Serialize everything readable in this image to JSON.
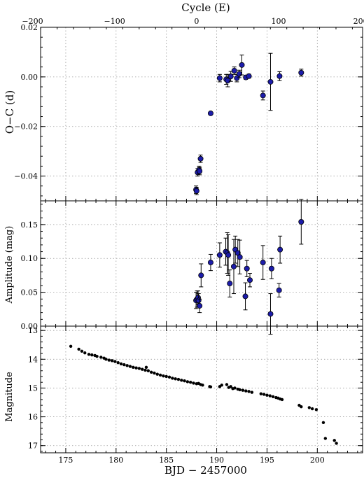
{
  "chart_data": [
    {
      "type": "scatter",
      "panel": "top",
      "ylabel": "O−C (d)",
      "xlabel_top": "Cycle (E)",
      "xlim": [
        172.5,
        204.5
      ],
      "ylim": [
        -0.05,
        0.02
      ],
      "yticks": [
        -0.04,
        -0.02,
        0.0,
        0.02
      ],
      "yticklabels": [
        "−0.04",
        "−0.02",
        "0.00",
        "0.02"
      ],
      "top_axis": {
        "ticks": [
          -200,
          -100,
          0,
          100,
          200
        ],
        "ticklabels": [
          "−200",
          "−100",
          "0",
          "100",
          "200"
        ],
        "zero_bjd": 188.0,
        "bjd_per_cycle": 0.0815
      },
      "grid": true,
      "series": [
        {
          "marker": "blue-circle",
          "x": [
            187.95,
            188.0,
            188.1,
            188.25,
            188.3,
            188.4,
            189.4,
            190.3,
            190.95,
            191.1,
            191.4,
            191.75,
            192.0,
            192.25,
            192.5,
            192.9,
            193.2,
            194.6,
            195.35,
            196.25,
            198.4
          ],
          "y": [
            -0.0455,
            -0.046,
            -0.0385,
            -0.0375,
            -0.038,
            -0.033,
            -0.0147,
            -0.0005,
            -0.001,
            -0.0015,
            0.0002,
            0.0025,
            -0.0005,
            0.0012,
            0.0048,
            -0.0002,
            0.0003,
            -0.0075,
            -0.002,
            0.0003,
            0.0017
          ],
          "yerr": [
            0.0015,
            0.0015,
            0.0015,
            0.0015,
            0.0015,
            0.0015,
            0.0004,
            0.0015,
            0.002,
            0.0025,
            0.002,
            0.0015,
            0.0015,
            0.0015,
            0.004,
            0.0008,
            0.0008,
            0.0018,
            0.0115,
            0.0018,
            0.0014
          ]
        }
      ]
    },
    {
      "type": "scatter",
      "panel": "middle",
      "ylabel": "Amplitude (mag)",
      "xlim": [
        172.5,
        204.5
      ],
      "ylim": [
        0,
        0.185
      ],
      "yticks": [
        0.0,
        0.05,
        0.1,
        0.15
      ],
      "yticklabels": [
        "0.00",
        "0.05",
        "0.10",
        "0.15"
      ],
      "grid": true,
      "series": [
        {
          "marker": "blue-circle",
          "x": [
            187.95,
            188.05,
            188.15,
            188.2,
            188.3,
            188.45,
            189.4,
            190.3,
            190.9,
            191.05,
            191.15,
            191.3,
            191.7,
            191.85,
            192.1,
            192.3,
            192.85,
            193.0,
            193.3,
            194.6,
            195.35,
            195.45,
            196.2,
            196.3,
            198.4
          ],
          "y": [
            0.038,
            0.04,
            0.042,
            0.038,
            0.03,
            0.075,
            0.094,
            0.105,
            0.11,
            0.108,
            0.105,
            0.063,
            0.088,
            0.113,
            0.108,
            0.102,
            0.044,
            0.085,
            0.068,
            0.094,
            0.018,
            0.085,
            0.053,
            0.113,
            0.154
          ],
          "yerr": [
            0.012,
            0.012,
            0.01,
            0.01,
            0.01,
            0.017,
            0.012,
            0.018,
            0.02,
            0.03,
            0.03,
            0.02,
            0.04,
            0.02,
            0.02,
            0.025,
            0.02,
            0.012,
            0.01,
            0.025,
            0.03,
            0.015,
            0.01,
            0.02,
            0.033
          ]
        }
      ]
    },
    {
      "type": "scatter",
      "panel": "bottom",
      "ylabel": "Magnitude",
      "xlabel": "BJD − 2457000",
      "xlim": [
        172.5,
        204.5
      ],
      "ylim": [
        17.25,
        12.85
      ],
      "yticks": [
        13,
        14,
        15,
        16,
        17
      ],
      "yticklabels": [
        "13",
        "14",
        "15",
        "16",
        "17"
      ],
      "xticks": [
        175,
        180,
        185,
        190,
        195,
        200
      ],
      "xticklabels": [
        "175",
        "180",
        "185",
        "190",
        "195",
        "200"
      ],
      "grid": true,
      "series": [
        {
          "marker": "black-dot",
          "x": [
            175.5,
            176.3,
            176.6,
            176.9,
            177.3,
            177.6,
            177.9,
            178.1,
            178.5,
            178.8,
            179.0,
            179.3,
            179.6,
            179.9,
            180.2,
            180.5,
            180.8,
            181.1,
            181.4,
            181.7,
            182.0,
            182.3,
            182.6,
            182.9,
            183.0,
            183.2,
            183.5,
            183.8,
            184.1,
            184.4,
            184.7,
            185.0,
            185.3,
            185.6,
            185.9,
            186.2,
            186.5,
            186.8,
            187.1,
            187.4,
            187.7,
            188.0,
            188.2,
            188.4,
            188.6,
            189.3,
            189.4,
            190.3,
            190.5,
            191.0,
            191.2,
            191.4,
            191.6,
            191.8,
            192.1,
            192.3,
            192.6,
            192.9,
            193.2,
            193.5,
            194.4,
            194.7,
            195.0,
            195.3,
            195.6,
            195.9,
            196.1,
            196.3,
            196.5,
            198.2,
            198.4,
            199.2,
            199.5,
            199.9,
            200.6,
            200.8,
            201.7,
            201.9
          ],
          "y": [
            13.55,
            13.65,
            13.72,
            13.78,
            13.83,
            13.85,
            13.87,
            13.9,
            13.93,
            13.96,
            14.0,
            14.03,
            14.05,
            14.08,
            14.12,
            14.16,
            14.19,
            14.22,
            14.25,
            14.28,
            14.3,
            14.32,
            14.35,
            14.38,
            14.28,
            14.4,
            14.45,
            14.48,
            14.52,
            14.55,
            14.58,
            14.6,
            14.62,
            14.66,
            14.68,
            14.7,
            14.73,
            14.75,
            14.78,
            14.8,
            14.83,
            14.85,
            14.84,
            14.88,
            14.9,
            14.95,
            14.96,
            14.95,
            14.9,
            14.88,
            14.98,
            14.95,
            15.02,
            15.0,
            15.04,
            15.06,
            15.08,
            15.1,
            15.12,
            15.15,
            15.2,
            15.22,
            15.25,
            15.27,
            15.3,
            15.33,
            15.35,
            15.38,
            15.4,
            15.6,
            15.65,
            15.68,
            15.72,
            15.75,
            16.2,
            16.75,
            16.82,
            16.92
          ]
        }
      ]
    }
  ]
}
